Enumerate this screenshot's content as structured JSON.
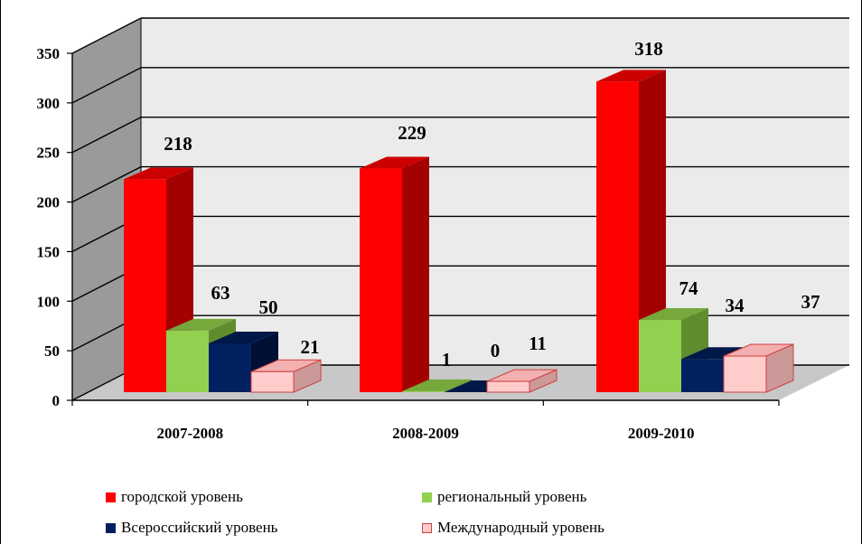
{
  "chart_data": {
    "type": "bar",
    "categories": [
      "2007-2008",
      "2008-2009",
      "2009-2010"
    ],
    "series": [
      {
        "name": "городской уровень",
        "values": [
          218,
          229,
          318
        ],
        "color": "#ff0000",
        "dark": "#a30000",
        "top": "#cc0000"
      },
      {
        "name": "региональный уровень",
        "values": [
          63,
          1,
          74
        ],
        "color": "#92d050",
        "dark": "#5f8d2e",
        "top": "#76a83c"
      },
      {
        "name": "Всероссийский уровень",
        "values": [
          50,
          0,
          34
        ],
        "color": "#002060",
        "dark": "#001035",
        "top": "#001848"
      },
      {
        "name": "Международный уровень",
        "values": [
          21,
          11,
          37
        ],
        "color": "#ffcccc",
        "dark": "#cc9999",
        "top": "#f2b0b0"
      }
    ],
    "data_labels": [
      [
        "218",
        "229",
        "318"
      ],
      [
        "63",
        "1",
        "74"
      ],
      [
        "50",
        "0",
        "34"
      ],
      [
        "21",
        "11",
        "37"
      ]
    ],
    "yticks": [
      "0",
      "50",
      "100",
      "150",
      "200",
      "250",
      "300",
      "350"
    ],
    "ylim": [
      0,
      350
    ],
    "grid": true,
    "legend_position": "bottom",
    "view": "3d"
  }
}
